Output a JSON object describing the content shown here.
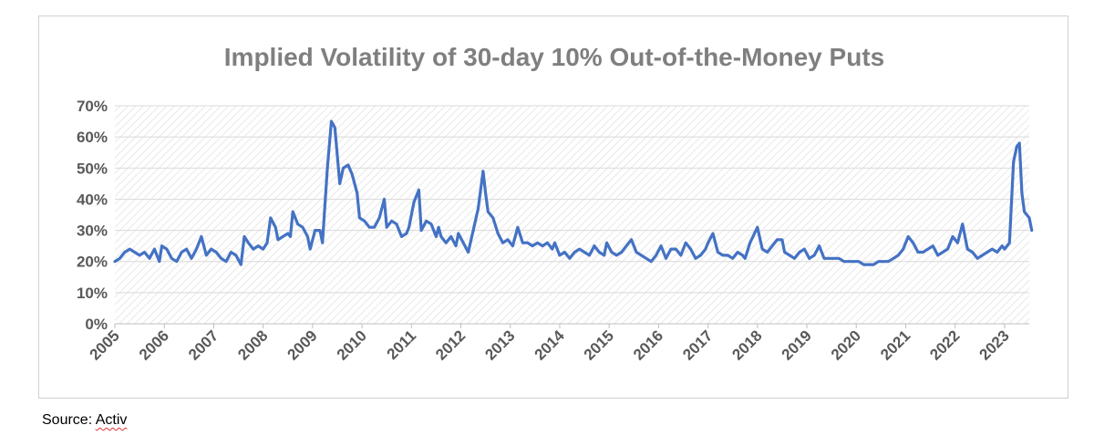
{
  "chart_data": {
    "type": "line",
    "title": "Implied Volatility of 30-day 10% Out-of-the-Money Puts",
    "xlabel": "",
    "ylabel": "",
    "x_tick_labels": [
      "2005",
      "2006",
      "2007",
      "2008",
      "2009",
      "2010",
      "2011",
      "2012",
      "2013",
      "2014",
      "2015",
      "2016",
      "2017",
      "2018",
      "2019",
      "2020",
      "2021",
      "2022",
      "2023"
    ],
    "y_tick_labels": [
      "0%",
      "10%",
      "20%",
      "30%",
      "40%",
      "50%",
      "60%",
      "70%"
    ],
    "xlim": [
      2005.0,
      2023.5
    ],
    "ylim": [
      0,
      70
    ],
    "grid": true,
    "legend": "none",
    "series": [
      {
        "name": "Implied Volatility",
        "color": "#4472C4",
        "points": [
          [
            2005.0,
            20
          ],
          [
            2005.1,
            21
          ],
          [
            2005.2,
            23
          ],
          [
            2005.3,
            24
          ],
          [
            2005.4,
            23
          ],
          [
            2005.5,
            22
          ],
          [
            2005.6,
            23
          ],
          [
            2005.7,
            21
          ],
          [
            2005.8,
            24
          ],
          [
            2005.9,
            20
          ],
          [
            2005.95,
            25
          ],
          [
            2006.05,
            24
          ],
          [
            2006.15,
            21
          ],
          [
            2006.25,
            20
          ],
          [
            2006.35,
            23
          ],
          [
            2006.45,
            24
          ],
          [
            2006.55,
            21
          ],
          [
            2006.65,
            24
          ],
          [
            2006.75,
            28
          ],
          [
            2006.85,
            22
          ],
          [
            2006.95,
            24
          ],
          [
            2007.05,
            23
          ],
          [
            2007.15,
            21
          ],
          [
            2007.25,
            20
          ],
          [
            2007.35,
            23
          ],
          [
            2007.45,
            22
          ],
          [
            2007.55,
            19
          ],
          [
            2007.62,
            28
          ],
          [
            2007.7,
            26
          ],
          [
            2007.8,
            24
          ],
          [
            2007.9,
            25
          ],
          [
            2008.0,
            24
          ],
          [
            2008.08,
            26
          ],
          [
            2008.15,
            34
          ],
          [
            2008.25,
            31
          ],
          [
            2008.3,
            27
          ],
          [
            2008.4,
            28
          ],
          [
            2008.5,
            29
          ],
          [
            2008.55,
            28
          ],
          [
            2008.6,
            36
          ],
          [
            2008.7,
            32
          ],
          [
            2008.8,
            31
          ],
          [
            2008.9,
            28
          ],
          [
            2008.95,
            24
          ],
          [
            2009.05,
            30
          ],
          [
            2009.15,
            30
          ],
          [
            2009.2,
            26
          ],
          [
            2009.3,
            50
          ],
          [
            2009.38,
            65
          ],
          [
            2009.45,
            63
          ],
          [
            2009.55,
            45
          ],
          [
            2009.62,
            50
          ],
          [
            2009.72,
            51
          ],
          [
            2009.8,
            48
          ],
          [
            2009.9,
            42
          ],
          [
            2009.95,
            34
          ],
          [
            2010.05,
            33
          ],
          [
            2010.15,
            31
          ],
          [
            2010.25,
            31
          ],
          [
            2010.35,
            34
          ],
          [
            2010.45,
            40
          ],
          [
            2010.5,
            31
          ],
          [
            2010.6,
            33
          ],
          [
            2010.7,
            32
          ],
          [
            2010.8,
            28
          ],
          [
            2010.9,
            29
          ],
          [
            2010.95,
            31
          ],
          [
            2011.05,
            39
          ],
          [
            2011.15,
            43
          ],
          [
            2011.2,
            30
          ],
          [
            2011.3,
            33
          ],
          [
            2011.4,
            32
          ],
          [
            2011.5,
            28
          ],
          [
            2011.55,
            31
          ],
          [
            2011.6,
            28
          ],
          [
            2011.7,
            26
          ],
          [
            2011.8,
            28
          ],
          [
            2011.9,
            25
          ],
          [
            2011.95,
            29
          ],
          [
            2012.05,
            26
          ],
          [
            2012.15,
            23
          ],
          [
            2012.25,
            30
          ],
          [
            2012.35,
            37
          ],
          [
            2012.45,
            49
          ],
          [
            2012.5,
            42
          ],
          [
            2012.55,
            36
          ],
          [
            2012.65,
            34
          ],
          [
            2012.75,
            29
          ],
          [
            2012.85,
            26
          ],
          [
            2012.95,
            27
          ],
          [
            2013.05,
            25
          ],
          [
            2013.15,
            31
          ],
          [
            2013.25,
            26
          ],
          [
            2013.35,
            26
          ],
          [
            2013.45,
            25
          ],
          [
            2013.55,
            26
          ],
          [
            2013.65,
            25
          ],
          [
            2013.75,
            26
          ],
          [
            2013.85,
            24
          ],
          [
            2013.9,
            26
          ],
          [
            2014.0,
            22
          ],
          [
            2014.1,
            23
          ],
          [
            2014.2,
            21
          ],
          [
            2014.3,
            23
          ],
          [
            2014.4,
            24
          ],
          [
            2014.5,
            23
          ],
          [
            2014.6,
            22
          ],
          [
            2014.7,
            25
          ],
          [
            2014.8,
            23
          ],
          [
            2014.9,
            22
          ],
          [
            2014.95,
            26
          ],
          [
            2015.05,
            23
          ],
          [
            2015.15,
            22
          ],
          [
            2015.25,
            23
          ],
          [
            2015.35,
            25
          ],
          [
            2015.45,
            27
          ],
          [
            2015.55,
            23
          ],
          [
            2015.65,
            22
          ],
          [
            2015.75,
            21
          ],
          [
            2015.85,
            20
          ],
          [
            2015.95,
            22
          ],
          [
            2016.05,
            25
          ],
          [
            2016.15,
            21
          ],
          [
            2016.25,
            24
          ],
          [
            2016.35,
            24
          ],
          [
            2016.45,
            22
          ],
          [
            2016.55,
            26
          ],
          [
            2016.65,
            24
          ],
          [
            2016.75,
            21
          ],
          [
            2016.85,
            22
          ],
          [
            2016.95,
            24
          ],
          [
            2017.0,
            26
          ],
          [
            2017.1,
            29
          ],
          [
            2017.2,
            23
          ],
          [
            2017.3,
            22
          ],
          [
            2017.4,
            22
          ],
          [
            2017.5,
            21
          ],
          [
            2017.6,
            23
          ],
          [
            2017.7,
            22
          ],
          [
            2017.75,
            21
          ],
          [
            2017.85,
            26
          ],
          [
            2018.0,
            31
          ],
          [
            2018.1,
            24
          ],
          [
            2018.2,
            23
          ],
          [
            2018.3,
            25
          ],
          [
            2018.4,
            27
          ],
          [
            2018.5,
            27
          ],
          [
            2018.55,
            23
          ],
          [
            2018.65,
            22
          ],
          [
            2018.75,
            21
          ],
          [
            2018.85,
            23
          ],
          [
            2018.95,
            24
          ],
          [
            2019.05,
            21
          ],
          [
            2019.15,
            22
          ],
          [
            2019.25,
            25
          ],
          [
            2019.35,
            21
          ],
          [
            2019.45,
            21
          ],
          [
            2019.55,
            21
          ],
          [
            2019.65,
            21
          ],
          [
            2019.75,
            20
          ],
          [
            2019.85,
            20
          ],
          [
            2019.95,
            20
          ],
          [
            2020.05,
            20
          ],
          [
            2020.15,
            19
          ],
          [
            2020.25,
            19
          ],
          [
            2020.35,
            19
          ],
          [
            2020.45,
            20
          ],
          [
            2020.55,
            20
          ],
          [
            2020.65,
            20
          ],
          [
            2020.75,
            21
          ],
          [
            2020.85,
            22
          ],
          [
            2020.95,
            24
          ],
          [
            2021.05,
            28
          ],
          [
            2021.15,
            26
          ],
          [
            2021.25,
            23
          ],
          [
            2021.35,
            23
          ],
          [
            2021.45,
            24
          ],
          [
            2021.55,
            25
          ],
          [
            2021.65,
            22
          ],
          [
            2021.75,
            23
          ],
          [
            2021.85,
            24
          ],
          [
            2021.95,
            28
          ],
          [
            2022.05,
            26
          ],
          [
            2022.15,
            32
          ],
          [
            2022.25,
            24
          ],
          [
            2022.35,
            23
          ],
          [
            2022.45,
            21
          ],
          [
            2022.55,
            22
          ],
          [
            2022.65,
            23
          ],
          [
            2022.75,
            24
          ],
          [
            2022.85,
            23
          ],
          [
            2022.95,
            25
          ],
          [
            2023.0,
            24
          ],
          [
            2023.05,
            25
          ],
          [
            2023.1,
            26
          ],
          [
            2023.18,
            52
          ],
          [
            2023.25,
            57
          ],
          [
            2023.3,
            58
          ],
          [
            2023.35,
            42
          ],
          [
            2023.4,
            36
          ],
          [
            2023.5,
            34
          ],
          [
            2023.55,
            30
          ]
        ]
      }
    ]
  },
  "source": {
    "label": "Source: ",
    "name": "Activ"
  }
}
